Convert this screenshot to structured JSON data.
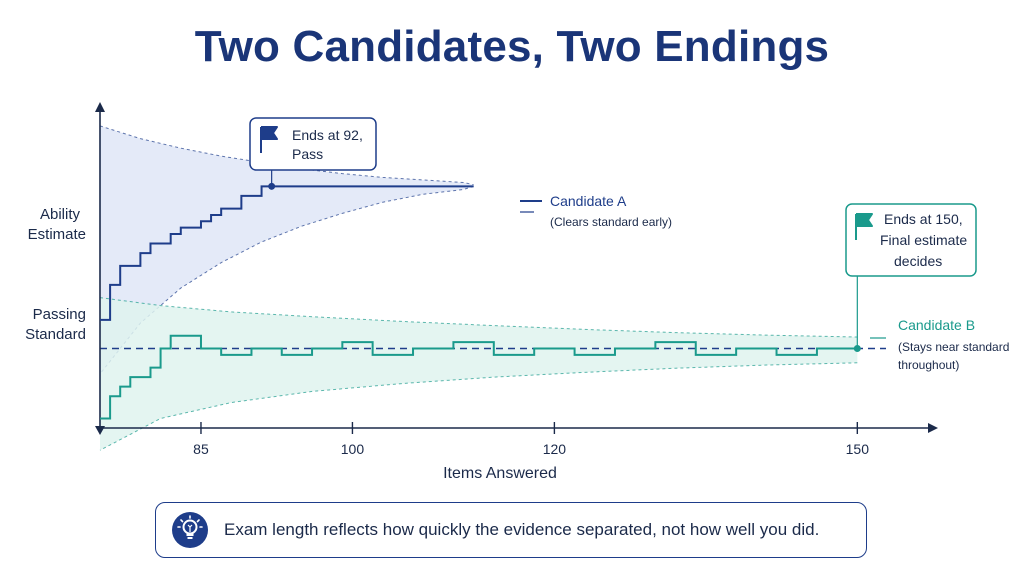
{
  "title": "Two Candidates, Two Endings",
  "colors": {
    "candidate_a": "#1e3d8a",
    "candidate_b": "#1a9a8c",
    "band_a": "#dfe6f7",
    "band_b": "#dff3ee",
    "axis": "#1b2a4a"
  },
  "y_labels": {
    "ability_line1": "Ability",
    "ability_line2": "Estimate",
    "passing_line1": "Passing",
    "passing_line2": "Standard"
  },
  "callouts": {
    "a_line1": "Ends at 92,",
    "a_line2": "Pass",
    "b_line1": "Ends at 150,",
    "b_line2": "Final estimate",
    "b_line3": "decides"
  },
  "legend": {
    "a_name": "Candidate A",
    "a_note": "(Clears standard early)",
    "b_name": "Candidate B",
    "b_note1": "(Stays near standard",
    "b_note2": "throughout)"
  },
  "tip": {
    "text": "Exam length reflects how quickly the evidence separated, not how well you did.",
    "icon": "lightbulb-icon"
  },
  "chart_data": {
    "type": "line",
    "xlabel": "Items Answered",
    "xticks": [
      85,
      100,
      120,
      150
    ],
    "xlim": [
      75,
      157
    ],
    "ylim": [
      -2.5,
      7.5
    ],
    "passing_standard": 0,
    "series": [
      {
        "name": "Candidate A",
        "x": [
          75,
          75.5,
          76,
          77,
          78,
          79,
          80,
          81,
          82,
          83,
          84,
          85,
          86,
          87,
          88,
          89,
          90,
          91,
          92,
          93,
          95,
          97,
          100,
          103,
          106,
          109,
          112
        ],
        "y": [
          0.9,
          0.9,
          2.0,
          2.6,
          2.6,
          3.0,
          3.3,
          3.3,
          3.6,
          3.8,
          3.8,
          4.0,
          4.2,
          4.4,
          4.4,
          4.8,
          4.8,
          5.1,
          5.1,
          5.1,
          5.1,
          5.1,
          5.1,
          5.1,
          5.1,
          5.1,
          5.1
        ],
        "end_x": 92,
        "end_y": 5.1,
        "band_upper": [
          7.0,
          6.6,
          6.3,
          6.05,
          5.85,
          5.65,
          5.5,
          5.38,
          5.3,
          5.22,
          5.15
        ],
        "band_lower": [
          -0.8,
          0.8,
          1.9,
          2.7,
          3.35,
          3.85,
          4.25,
          4.6,
          4.85,
          5.0,
          5.1
        ],
        "band_x": [
          75,
          79,
          83,
          87,
          91,
          95,
          99,
          103,
          107,
          111,
          112
        ]
      },
      {
        "name": "Candidate B",
        "x": [
          75,
          76,
          77,
          78,
          79,
          80,
          81,
          82,
          83,
          84,
          85,
          86,
          87,
          90,
          93,
          96,
          99,
          102,
          106,
          110,
          114,
          118,
          122,
          126,
          130,
          134,
          138,
          142,
          146,
          150
        ],
        "y": [
          -2.2,
          -1.5,
          -1.2,
          -0.9,
          -0.9,
          -0.6,
          0.0,
          0.4,
          0.4,
          0.4,
          0.0,
          0.0,
          -0.2,
          0.0,
          -0.2,
          0.0,
          0.2,
          -0.2,
          0.0,
          0.2,
          -0.2,
          0.0,
          -0.2,
          0.0,
          0.2,
          -0.2,
          0.0,
          -0.2,
          0.0,
          0.0
        ],
        "end_x": 150,
        "end_y": 0.0,
        "band_upper": [
          1.6,
          1.35,
          1.15,
          1.0,
          0.85,
          0.72,
          0.6,
          0.5,
          0.42,
          0.36
        ],
        "band_lower": [
          -3.2,
          -2.2,
          -1.7,
          -1.35,
          -1.1,
          -0.9,
          -0.75,
          -0.62,
          -0.52,
          -0.45
        ],
        "band_x": [
          75,
          81,
          88,
          96,
          105,
          114,
          123,
          132,
          141,
          150
        ]
      }
    ]
  }
}
